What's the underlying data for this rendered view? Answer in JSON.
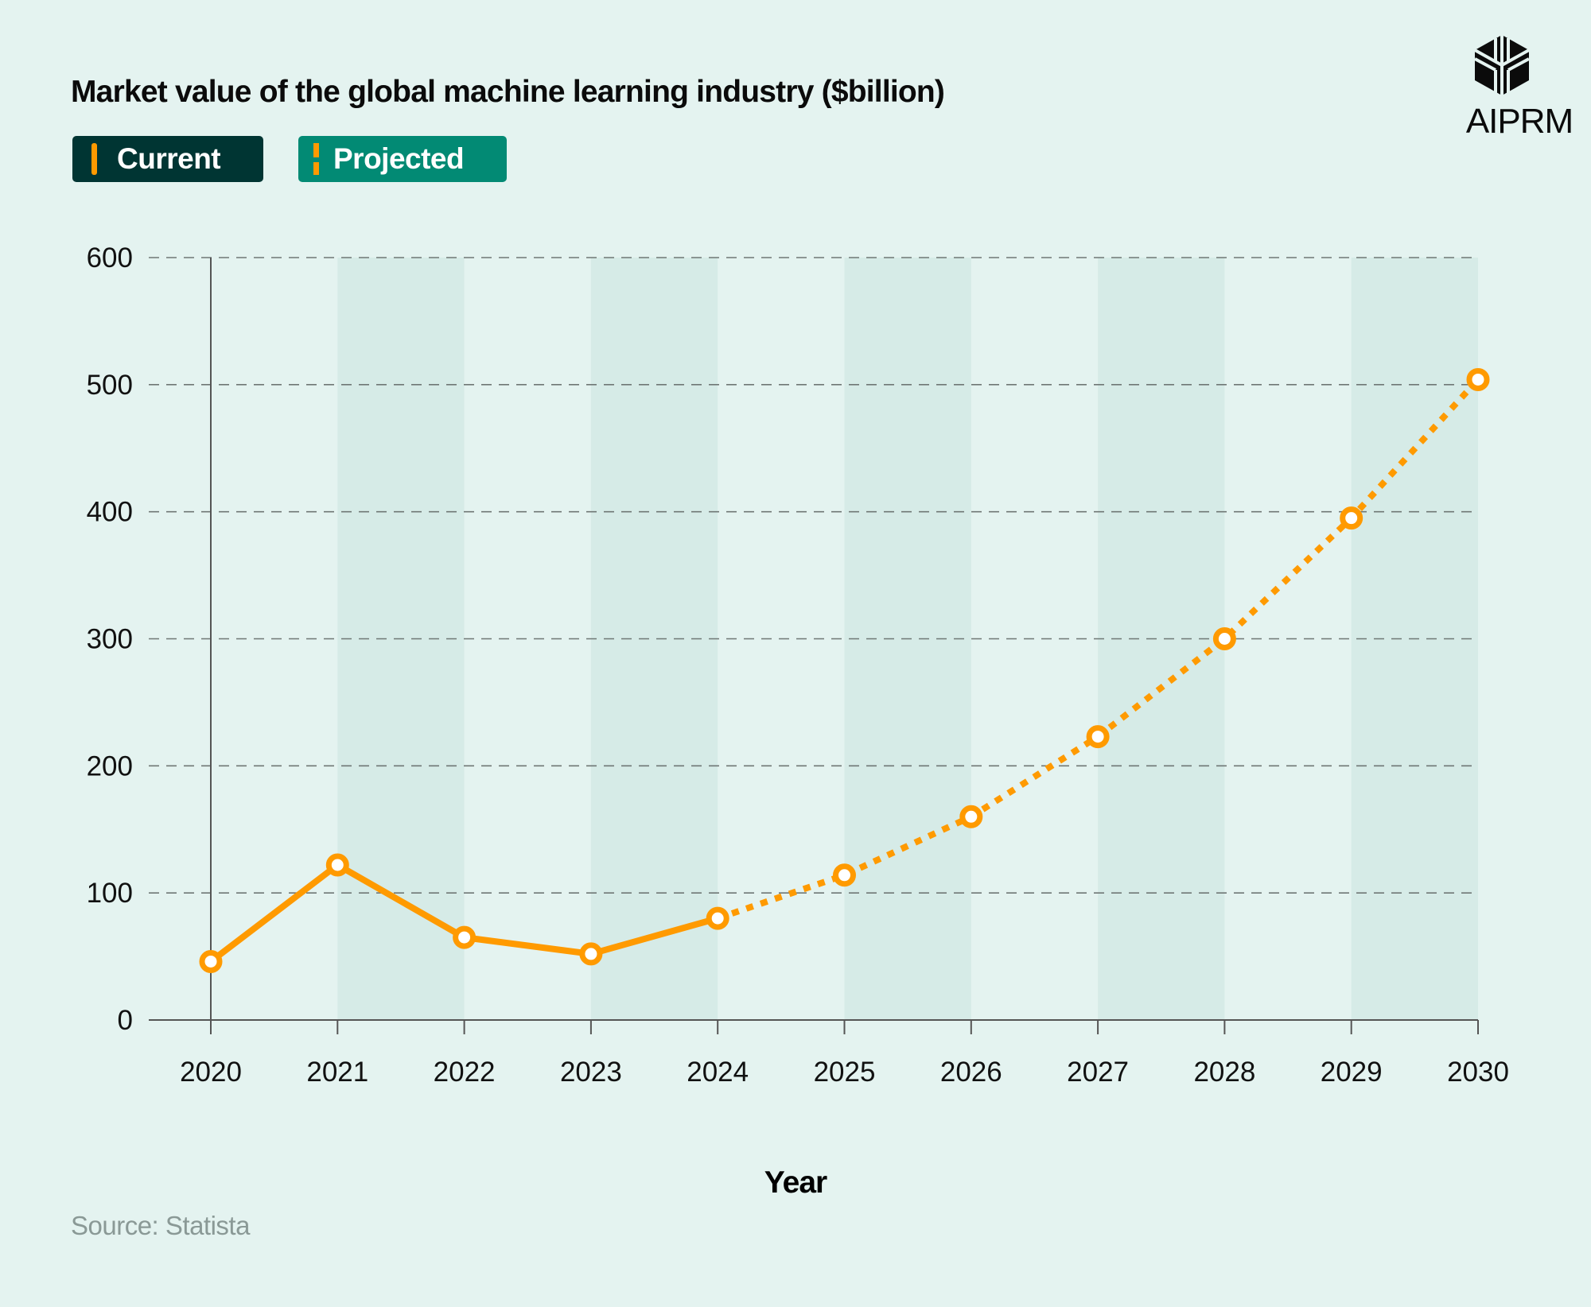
{
  "brand": {
    "name": "AIPRM",
    "icon": "aiprm-cube-logo-icon"
  },
  "source": "Source: Statista",
  "legend": {
    "current": "Current",
    "projected": "Projected"
  },
  "colors": {
    "background": "#e4f3f0",
    "band": "#d6ebe7",
    "line": "#ff9a00",
    "current_badge": "#003533",
    "projected_badge": "#028a74"
  },
  "chart_data": {
    "type": "line",
    "title": "Market value of the global machine learning industry ($billion)",
    "xlabel": "Year",
    "ylabel": "",
    "x": [
      2020,
      2021,
      2022,
      2023,
      2024,
      2025,
      2026,
      2027,
      2028,
      2029,
      2030
    ],
    "x_tick_labels": [
      "2020",
      "2021",
      "2022",
      "2023",
      "2024",
      "2025",
      "2026",
      "2027",
      "2028",
      "2029",
      "2030"
    ],
    "y_tick_labels": [
      "0",
      "100",
      "200",
      "300",
      "400",
      "500",
      "600"
    ],
    "ylim": [
      0,
      600
    ],
    "grid": "horizontal dashed",
    "legend_placement": "top-left",
    "series": [
      {
        "name": "Current",
        "style": "solid",
        "x": [
          2020,
          2021,
          2022,
          2023,
          2024
        ],
        "values": [
          46,
          122,
          65,
          52,
          80
        ]
      },
      {
        "name": "Projected",
        "style": "dotted",
        "x": [
          2024,
          2025,
          2026,
          2027,
          2028,
          2029,
          2030
        ],
        "values": [
          80,
          114,
          160,
          223,
          300,
          395,
          504
        ]
      }
    ]
  }
}
